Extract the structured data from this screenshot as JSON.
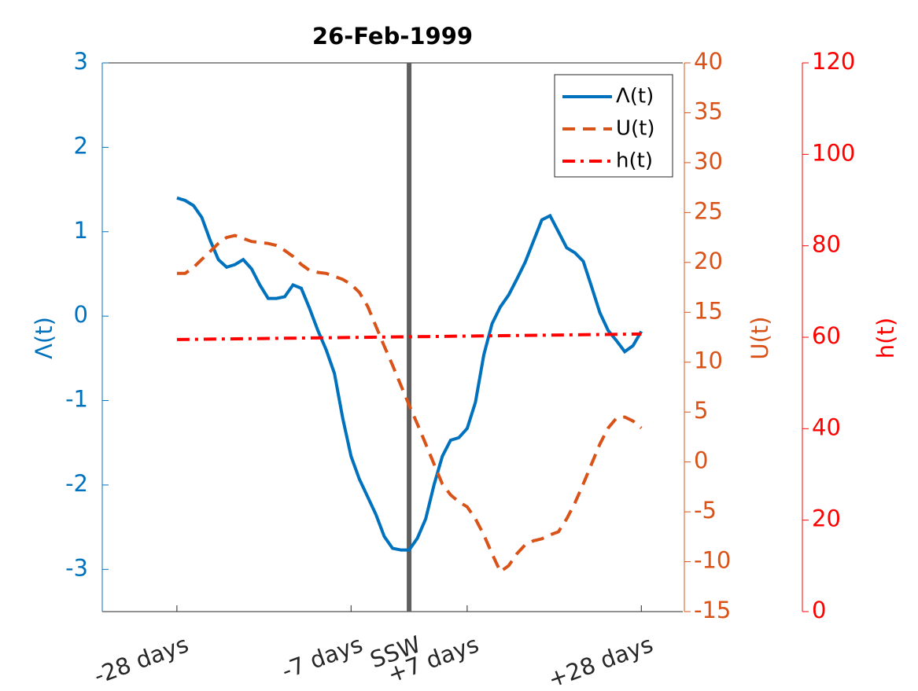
{
  "chart_data": {
    "type": "line",
    "title": "26-Feb-1999",
    "x": [
      -28,
      -27,
      -26,
      -25,
      -24,
      -23,
      -22,
      -21,
      -20,
      -19,
      -18,
      -17,
      -16,
      -15,
      -14,
      -13,
      -12,
      -11,
      -10,
      -9,
      -8,
      -7,
      -6,
      -5,
      -4,
      -3,
      -2,
      -1,
      0,
      1,
      2,
      3,
      4,
      5,
      6,
      7,
      8,
      9,
      10,
      11,
      12,
      13,
      14,
      15,
      16,
      17,
      18,
      19,
      20,
      21,
      22,
      23,
      24,
      25,
      26,
      27,
      28
    ],
    "xlim": [
      -37,
      33
    ],
    "xticks": [
      {
        "value": -28,
        "label": "-28 days"
      },
      {
        "value": -7,
        "label": "-7 days"
      },
      {
        "value": 0,
        "label": "SSW"
      },
      {
        "value": 7,
        "label": "+7 days"
      },
      {
        "value": 28,
        "label": "+28 days"
      }
    ],
    "ylim": [
      -3.5,
      3
    ],
    "yticks": [
      -3,
      -2,
      -1,
      0,
      1,
      2,
      3
    ],
    "ylabel": "Λ(t)",
    "ycolor": "#0072BD",
    "y2lim": [
      -15,
      40
    ],
    "y2ticks": [
      -15,
      -10,
      -5,
      0,
      5,
      10,
      15,
      20,
      25,
      30,
      35,
      40
    ],
    "y2label": "U(t)",
    "y2color": "#D95319",
    "y3lim": [
      0,
      120
    ],
    "y3ticks": [
      0,
      20,
      40,
      60,
      80,
      100,
      120
    ],
    "y3label": "h(t)",
    "y3color": "#FF0000",
    "vline": 0,
    "vline_color": "#5f5f5f",
    "series": [
      {
        "name": "Λ(t)",
        "color": "#0072BD",
        "linestyle": "solid",
        "axis": "y",
        "values": [
          1.4,
          1.37,
          1.31,
          1.17,
          0.9,
          0.67,
          0.58,
          0.61,
          0.67,
          0.56,
          0.37,
          0.21,
          0.21,
          0.23,
          0.37,
          0.33,
          0.09,
          -0.17,
          -0.4,
          -0.68,
          -1.21,
          -1.66,
          -1.93,
          -2.14,
          -2.35,
          -2.61,
          -2.75,
          -2.77,
          -2.77,
          -2.63,
          -2.4,
          -2.0,
          -1.66,
          -1.47,
          -1.44,
          -1.33,
          -1.02,
          -0.46,
          -0.09,
          0.11,
          0.25,
          0.44,
          0.64,
          0.89,
          1.14,
          1.19,
          1.0,
          0.81,
          0.75,
          0.65,
          0.35,
          0.04,
          -0.17,
          -0.29,
          -0.42,
          -0.35,
          -0.18
        ]
      },
      {
        "name": "U(t)",
        "color": "#D95319",
        "linestyle": "dashed",
        "axis": "y2",
        "values": [
          18.9,
          18.9,
          19.5,
          20.3,
          21.1,
          21.9,
          22.5,
          22.7,
          22.4,
          22.1,
          22.0,
          21.9,
          21.7,
          21.2,
          20.6,
          19.8,
          19.2,
          19.0,
          18.9,
          18.6,
          18.3,
          17.8,
          17.0,
          15.6,
          13.6,
          11.6,
          9.7,
          7.7,
          5.7,
          3.8,
          1.8,
          -0.2,
          -2.2,
          -3.3,
          -4.0,
          -4.5,
          -5.7,
          -7.3,
          -9.2,
          -11.0,
          -10.4,
          -9.2,
          -8.3,
          -7.9,
          -7.7,
          -7.3,
          -7.0,
          -5.7,
          -4.1,
          -2.2,
          -0.2,
          1.8,
          3.4,
          4.4,
          4.5,
          4.1,
          3.4
        ]
      },
      {
        "name": "h(t)",
        "color": "#FF0000",
        "linestyle": "dashdot",
        "axis": "y3",
        "x": [
          -28,
          28
        ],
        "values": [
          59.5,
          60.7
        ]
      }
    ]
  }
}
